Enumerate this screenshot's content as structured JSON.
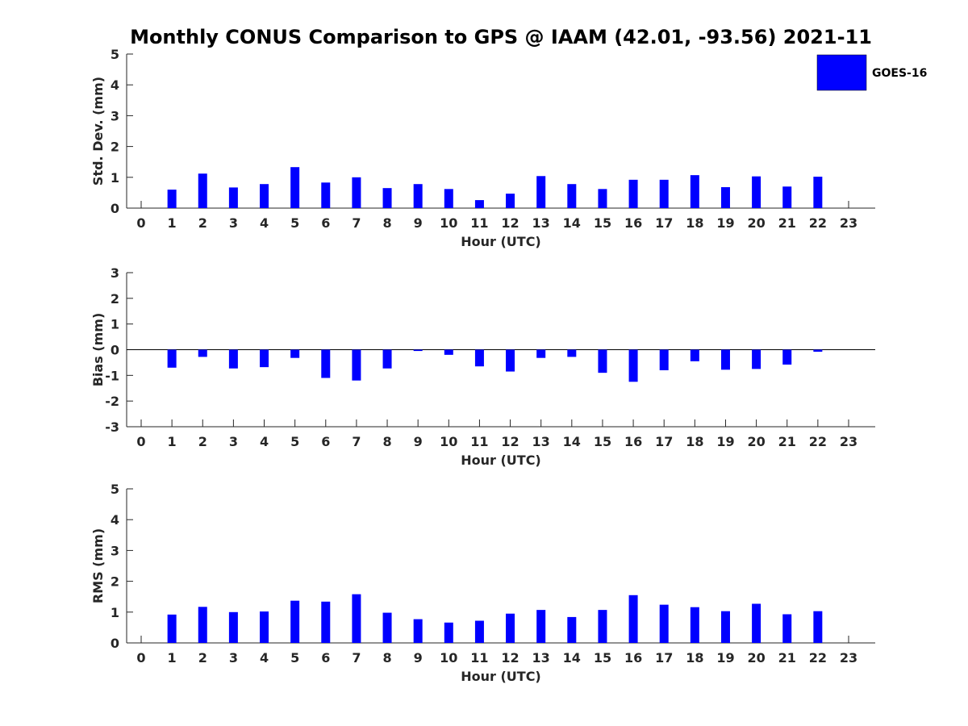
{
  "chart_data": {
    "type": "bar",
    "title": "Monthly CONUS Comparison to GPS @ IAAM (42.01, -93.56) 2021-11",
    "legend": {
      "label": "GOES-16",
      "color": "#0000FF",
      "placement": "top-right"
    },
    "bar_color": "#0000FF",
    "categories": [
      "0",
      "1",
      "2",
      "3",
      "4",
      "5",
      "6",
      "7",
      "8",
      "9",
      "10",
      "11",
      "12",
      "13",
      "14",
      "15",
      "16",
      "17",
      "18",
      "19",
      "20",
      "21",
      "22",
      "23"
    ],
    "panels": [
      {
        "ylabel": "Std. Dev. (mm)",
        "xlabel": "Hour (UTC)",
        "ylim": [
          0,
          5
        ],
        "yticks": [
          "0",
          "1",
          "2",
          "3",
          "4",
          "5"
        ],
        "values": [
          null,
          0.6,
          1.12,
          0.67,
          0.78,
          1.33,
          0.83,
          1.0,
          0.65,
          0.78,
          0.62,
          0.26,
          0.47,
          1.04,
          0.78,
          0.62,
          0.92,
          0.92,
          1.07,
          0.68,
          1.03,
          0.7,
          1.02,
          null
        ]
      },
      {
        "ylabel": "Bias (mm)",
        "xlabel": "Hour (UTC)",
        "ylim": [
          -3,
          3
        ],
        "yticks": [
          "-3",
          "-2",
          "-1",
          "0",
          "1",
          "2",
          "3"
        ],
        "zero_line": true,
        "values": [
          null,
          -0.7,
          -0.28,
          -0.73,
          -0.68,
          -0.32,
          -1.1,
          -1.2,
          -0.73,
          -0.05,
          -0.2,
          -0.65,
          -0.85,
          -0.32,
          -0.28,
          -0.9,
          -1.25,
          -0.8,
          -0.45,
          -0.78,
          -0.75,
          -0.58,
          -0.08,
          null
        ]
      },
      {
        "ylabel": "RMS (mm)",
        "xlabel": "Hour (UTC)",
        "ylim": [
          0,
          5
        ],
        "yticks": [
          "0",
          "1",
          "2",
          "3",
          "4",
          "5"
        ],
        "values": [
          null,
          0.92,
          1.17,
          1.0,
          1.02,
          1.37,
          1.34,
          1.58,
          0.98,
          0.77,
          0.66,
          0.72,
          0.95,
          1.07,
          0.84,
          1.07,
          1.55,
          1.24,
          1.16,
          1.03,
          1.27,
          0.93,
          1.03,
          null
        ]
      }
    ]
  }
}
